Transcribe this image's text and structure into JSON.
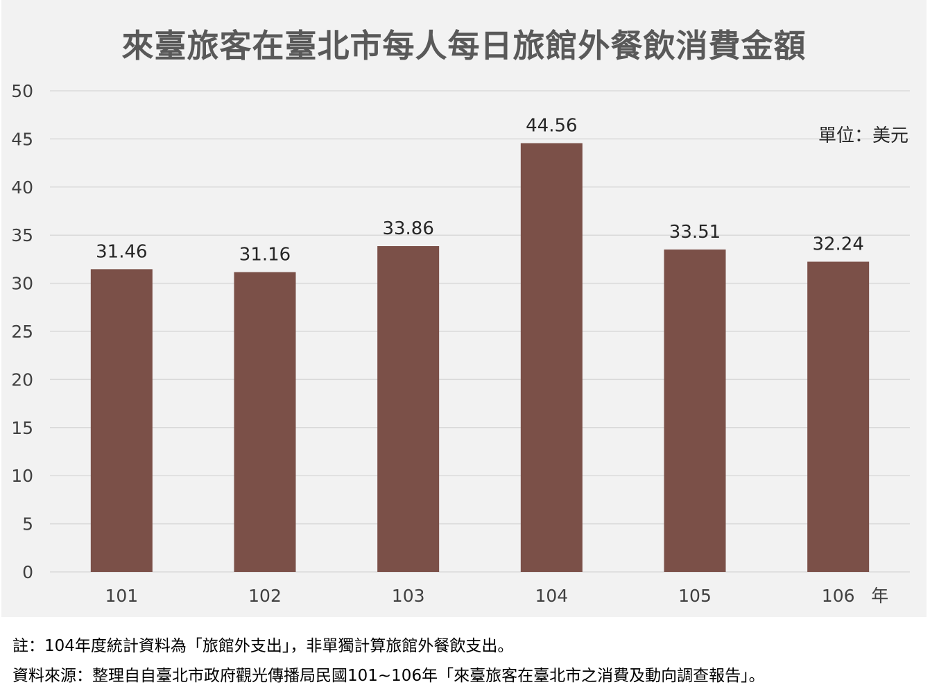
{
  "chart_data": {
    "type": "bar",
    "title": "來臺旅客在臺北市每人每日旅館外餐飲消費金額",
    "categories": [
      "101",
      "102",
      "103",
      "104",
      "105",
      "106"
    ],
    "values": [
      31.46,
      31.16,
      33.86,
      44.56,
      33.51,
      32.24
    ],
    "data_labels": [
      "31.46",
      "31.16",
      "33.86",
      "44.56",
      "33.51",
      "32.24"
    ],
    "yticks": [
      "0",
      "5",
      "10",
      "15",
      "20",
      "25",
      "30",
      "35",
      "40",
      "45",
      "50"
    ],
    "ylim": [
      0,
      50
    ],
    "ystep": 5,
    "xlabel": "年",
    "unit_label": "單位：美元",
    "grid": true,
    "bar_color": "#7b5048",
    "grid_color": "#d9d9d9",
    "background_color": "#f2f2f2"
  },
  "notes": {
    "note": "註：104年度統計資料為「旅館外支出」，非單獨計算旅館外餐飲支出。",
    "source": "資料來源：整理自自臺北市政府觀光傳播局民國101~106年「來臺旅客在臺北市之消費及動向調查報告」。"
  }
}
